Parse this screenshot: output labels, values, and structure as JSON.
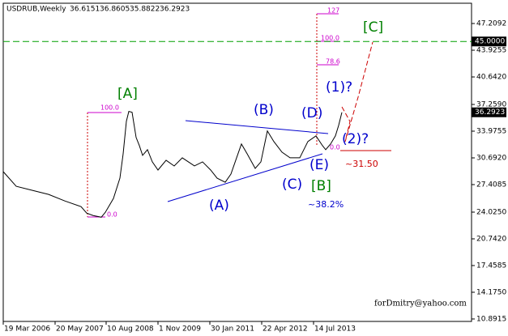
{
  "chart_data": {
    "type": "line",
    "title": "USDRUB,Weekly",
    "ohlc": [
      36.6151,
      36.8605,
      35.8822,
      36.2923
    ],
    "x": [
      0,
      16,
      36,
      56,
      76,
      96,
      103,
      111,
      121,
      126,
      136,
      144,
      148,
      152,
      155,
      159,
      164,
      168,
      172,
      178,
      184,
      191,
      201,
      211,
      221,
      236,
      246,
      256,
      264,
      274,
      281,
      288,
      294,
      301,
      311,
      318,
      326,
      334,
      344,
      354,
      366,
      376,
      386,
      394,
      398,
      404,
      410,
      414,
      418
    ],
    "series": [
      {
        "name": "USDRUB",
        "color": "#000000",
        "values": [
          29.0,
          27.2,
          26.7,
          26.2,
          25.4,
          24.7,
          23.9,
          23.6,
          23.4,
          24.0,
          25.7,
          28.2,
          31.2,
          35.2,
          36.4,
          36.3,
          33.2,
          32.2,
          31.0,
          31.7,
          30.2,
          29.2,
          30.4,
          29.7,
          30.7,
          29.7,
          30.2,
          29.2,
          28.2,
          27.7,
          28.7,
          30.7,
          32.4,
          31.2,
          29.4,
          30.2,
          34.0,
          32.7,
          31.4,
          30.7,
          30.7,
          32.7,
          33.4,
          32.2,
          31.7,
          32.4,
          33.4,
          34.7,
          36.2923
        ]
      }
    ],
    "xlim": [
      0,
      578
    ],
    "xticks": [
      {
        "value": 0,
        "label": "19 Mar 2006"
      },
      {
        "value": 64,
        "label": "20 May 2007"
      },
      {
        "value": 127,
        "label": "10 Aug 2008"
      },
      {
        "value": 191,
        "label": "1 Nov 2009"
      },
      {
        "value": 255,
        "label": "30 Jan 2011"
      },
      {
        "value": 319,
        "label": "22 Apr 2012"
      },
      {
        "value": 383,
        "label": "14 Jul 2013"
      }
    ],
    "ylim": [
      10.59,
      49.7
    ],
    "yticks": [
      47.2092,
      43.9255,
      {
        "value": 40.642,
        "label": "40.6420"
      },
      {
        "value": 37.259,
        "label": "37.2590"
      },
      33.9755,
      {
        "value": 30.692,
        "label": "30.6920"
      },
      27.4085,
      {
        "value": 24.025,
        "label": "24.0250"
      },
      {
        "value": 20.742,
        "label": "20.7420"
      },
      17.4585,
      {
        "value": 14.175,
        "label": "14.1750"
      },
      10.8915
    ],
    "levels": [
      {
        "value": 45,
        "label": "45.0000",
        "color": "#00a000"
      }
    ],
    "annotations": [
      "[A]",
      "(B)",
      "(D)",
      "(1)?",
      "[C]",
      "(2)?",
      "(E)",
      "(C)",
      "[B]",
      "(A)",
      "~38.2%",
      "~31.50",
      "100.0",
      "0.0",
      "127",
      "100.0",
      "78.6",
      "0.0",
      "forDmitry@yahoo.com"
    ]
  }
}
